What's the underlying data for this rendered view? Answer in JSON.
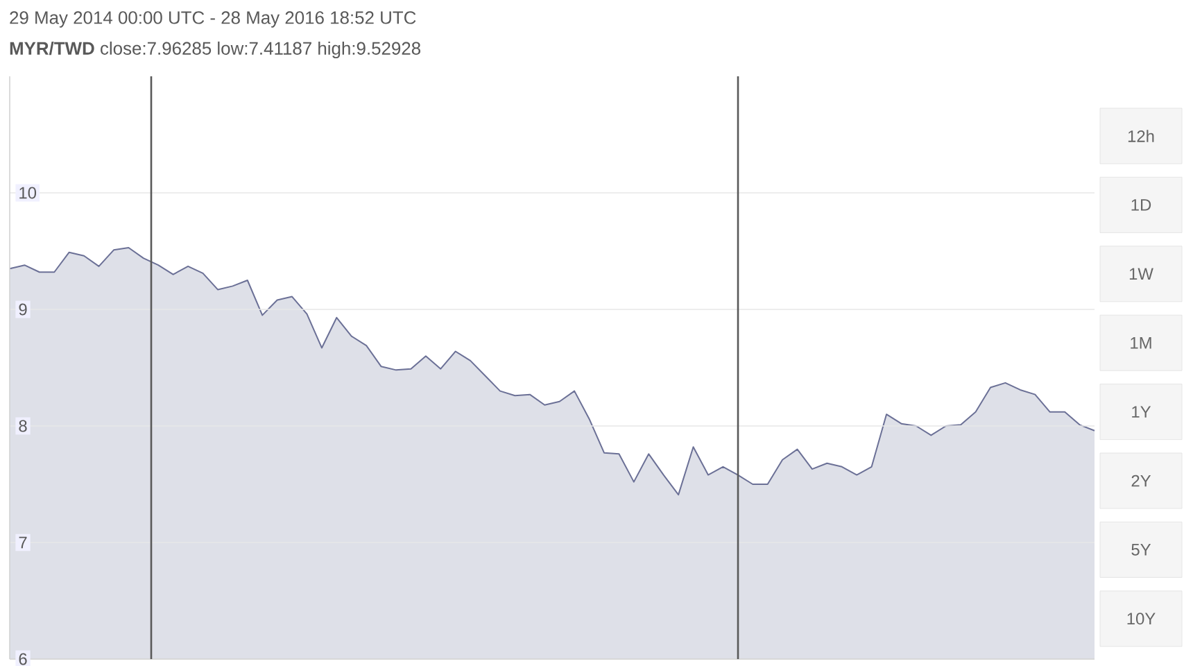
{
  "chart_data": {
    "type": "area",
    "title": "29 May 2014 00:00 UTC - 28 May 2016 18:52 UTC",
    "subtitle": "**MYR/TWD** close:7.96285 low:7.41187 high:9.52928",
    "categories": [
      null,
      null,
      null,
      null,
      null,
      null,
      null,
      null,
      null,
      null,
      null,
      null,
      null,
      null,
      null,
      null,
      null,
      null,
      null,
      null,
      null,
      null,
      null,
      null,
      null,
      null,
      null,
      null,
      null,
      null,
      null,
      null,
      null,
      null,
      null,
      null,
      null,
      null,
      null,
      null,
      null,
      null,
      null,
      null,
      null,
      null,
      null,
      null,
      null,
      null,
      null,
      null,
      null,
      null,
      null,
      null,
      null,
      null,
      null,
      null,
      null,
      null,
      null,
      null,
      null,
      null,
      null,
      null,
      null,
      null,
      null,
      null,
      null,
      null
    ],
    "series": [
      {
        "color": "#6b7096",
        "values": [
          9.35,
          9.38,
          9.32,
          9.32,
          9.49,
          9.46,
          9.37,
          9.51,
          9.53,
          9.44,
          9.38,
          9.3,
          9.37,
          9.31,
          9.17,
          9.2,
          9.25,
          8.95,
          9.08,
          9.11,
          8.96,
          8.67,
          8.93,
          8.77,
          8.69,
          8.51,
          8.48,
          8.49,
          8.6,
          8.49,
          8.64,
          8.56,
          8.43,
          8.3,
          8.26,
          8.27,
          8.18,
          8.21,
          8.3,
          8.06,
          7.77,
          7.76,
          7.52,
          7.76,
          7.58,
          7.41,
          7.82,
          7.58,
          7.65,
          7.58,
          7.5,
          7.5,
          7.71,
          7.8,
          7.63,
          7.68,
          7.65,
          7.58,
          7.65,
          8.1,
          8.02,
          8.0,
          7.92,
          8.0,
          8.01,
          8.12,
          8.33,
          8.37,
          8.31,
          8.27,
          8.12,
          8.12,
          8.01,
          7.96
        ]
      }
    ],
    "ylim": [
      6,
      11
    ],
    "yticks": [
      6,
      7,
      8,
      9,
      10
    ],
    "tick_labels": "y",
    "grid": "y",
    "annotations": [
      "12h",
      "1D",
      "1W",
      "1M",
      "1Y",
      "2Y",
      "5Y",
      "10Y"
    ]
  }
}
